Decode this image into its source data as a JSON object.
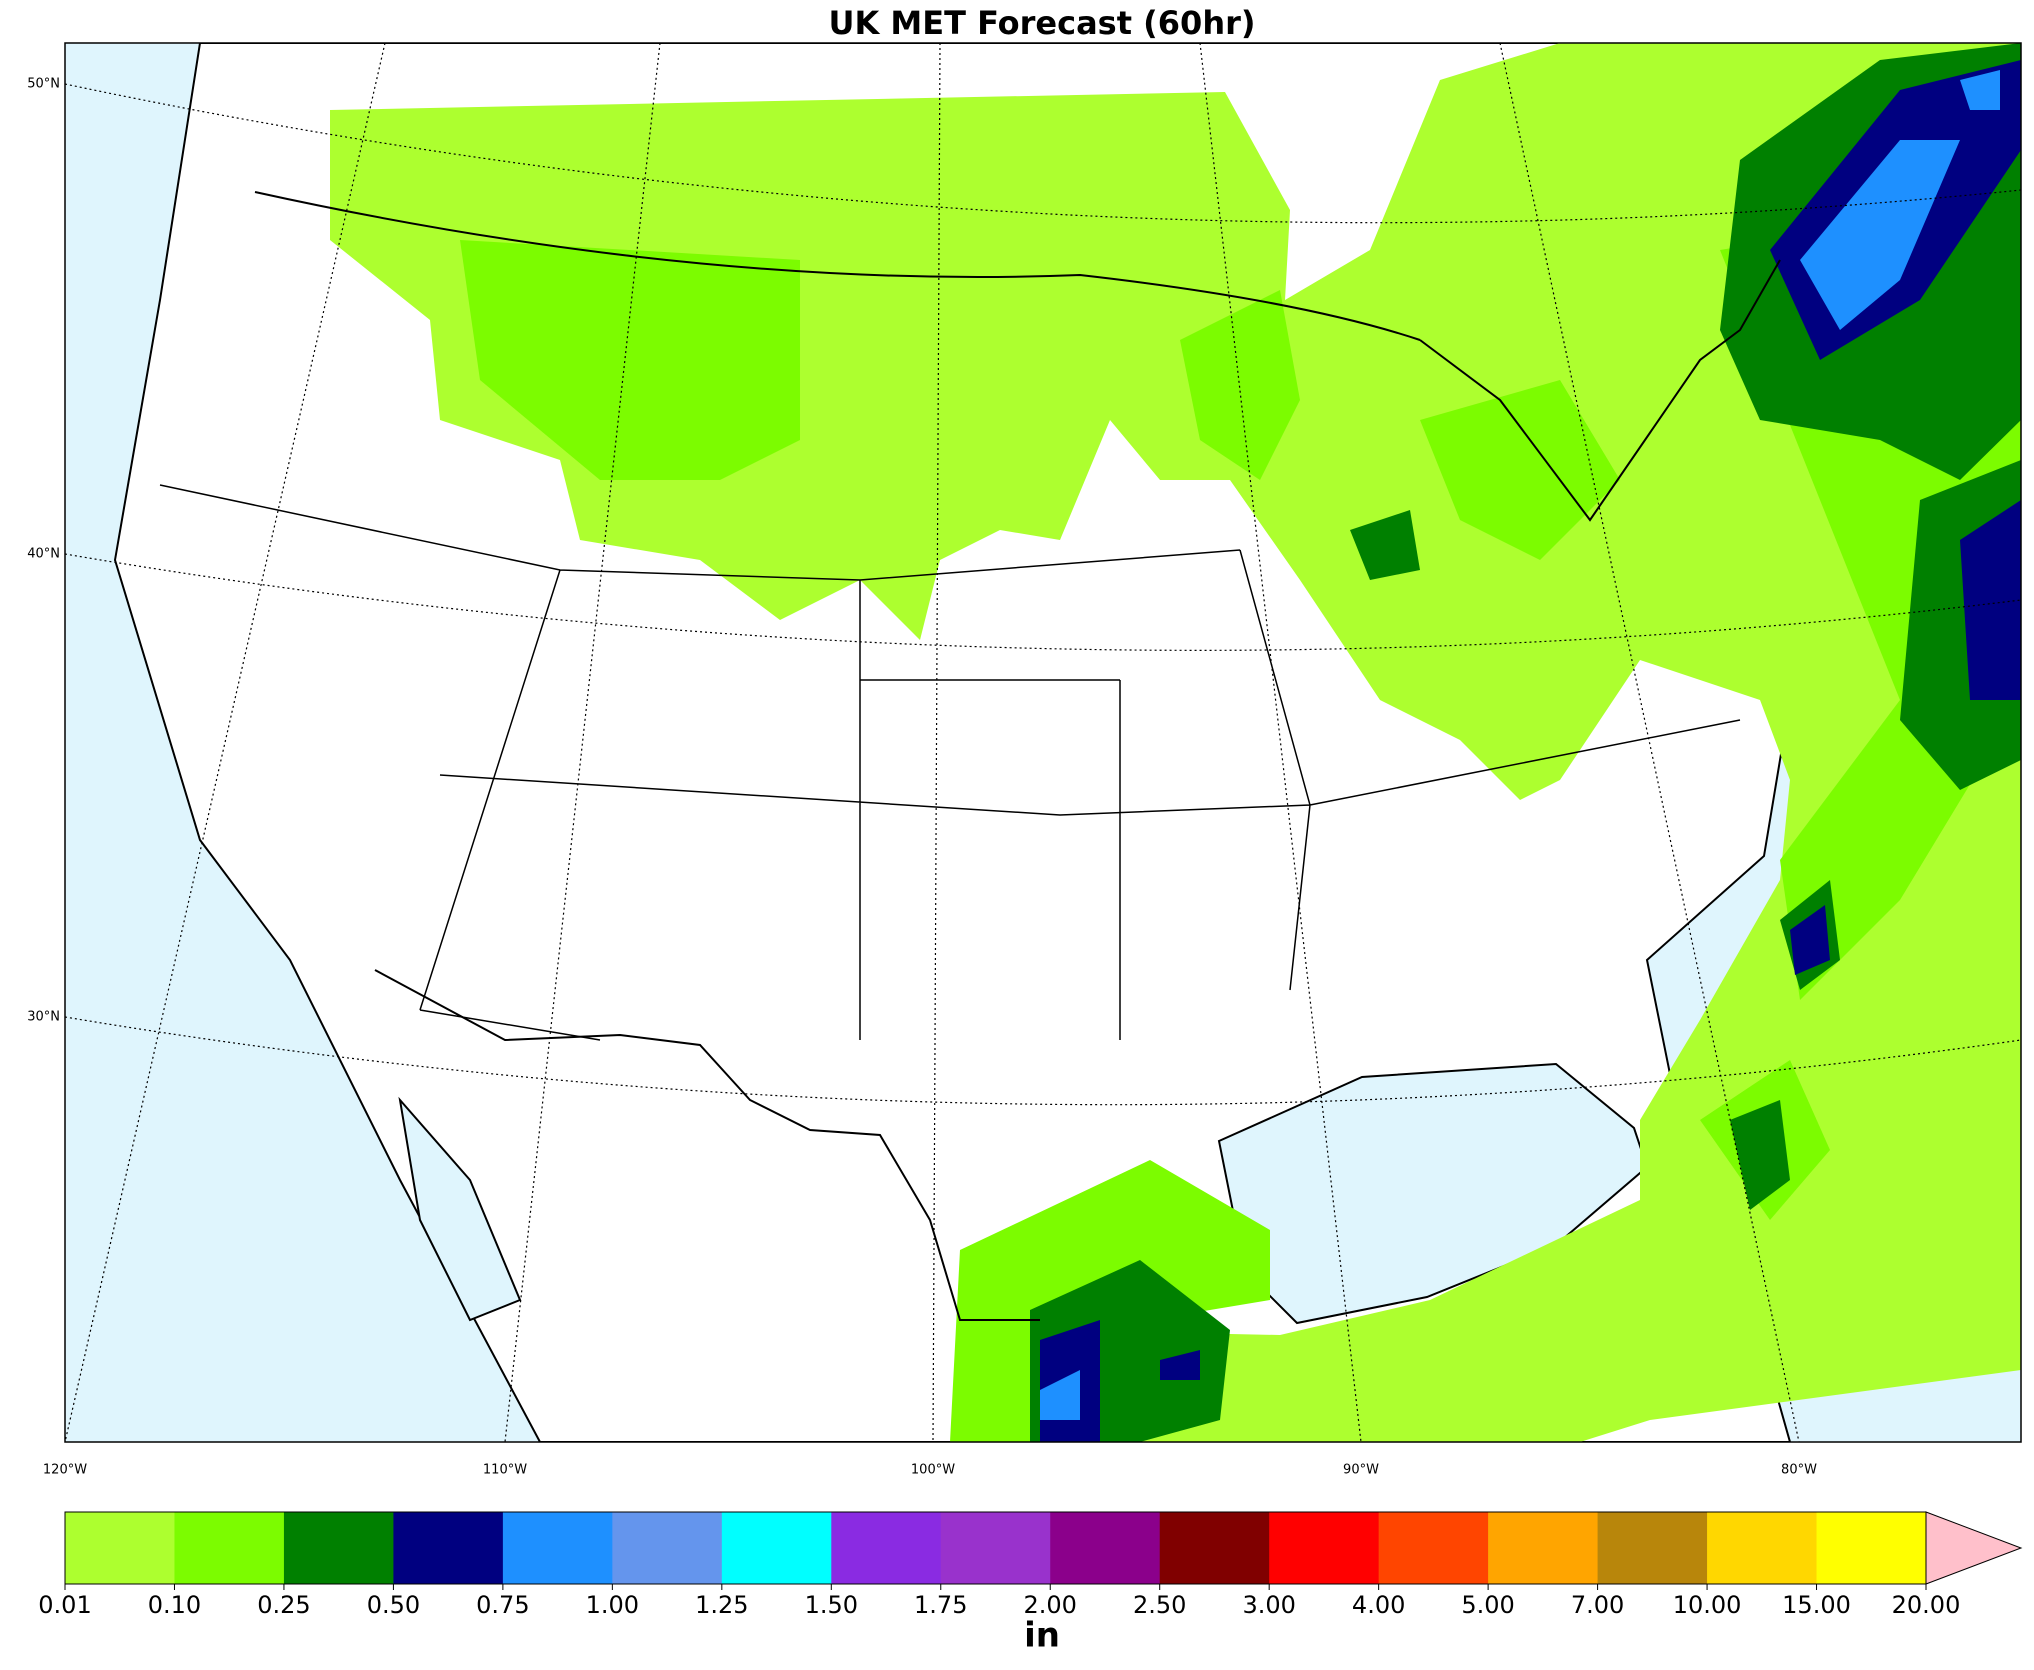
{
  "title": "UK MET Forecast (60hr)",
  "lat_labels": [
    "50°N",
    "40°N",
    "30°N"
  ],
  "lon_labels": [
    "120°W",
    "110°W",
    "100°W",
    "90°W",
    "80°W"
  ],
  "colorbar": {
    "levels": [
      "0.01",
      "0.10",
      "0.25",
      "0.50",
      "0.75",
      "1.00",
      "1.25",
      "1.50",
      "1.75",
      "2.00",
      "2.50",
      "3.00",
      "4.00",
      "5.00",
      "7.00",
      "10.00",
      "15.00",
      "20.00"
    ],
    "colors": [
      "#adff2f",
      "#7cfc00",
      "#008000",
      "#000080",
      "#1e90ff",
      "#6495ed",
      "#00ffff",
      "#8a2be2",
      "#9932cc",
      "#8b008b",
      "#800000",
      "#ff0000",
      "#ff4500",
      "#ffa500",
      "#b8860b",
      "#ffd700",
      "#ffff00"
    ],
    "extend_color": "#ffc0cb",
    "unit": "in"
  }
}
